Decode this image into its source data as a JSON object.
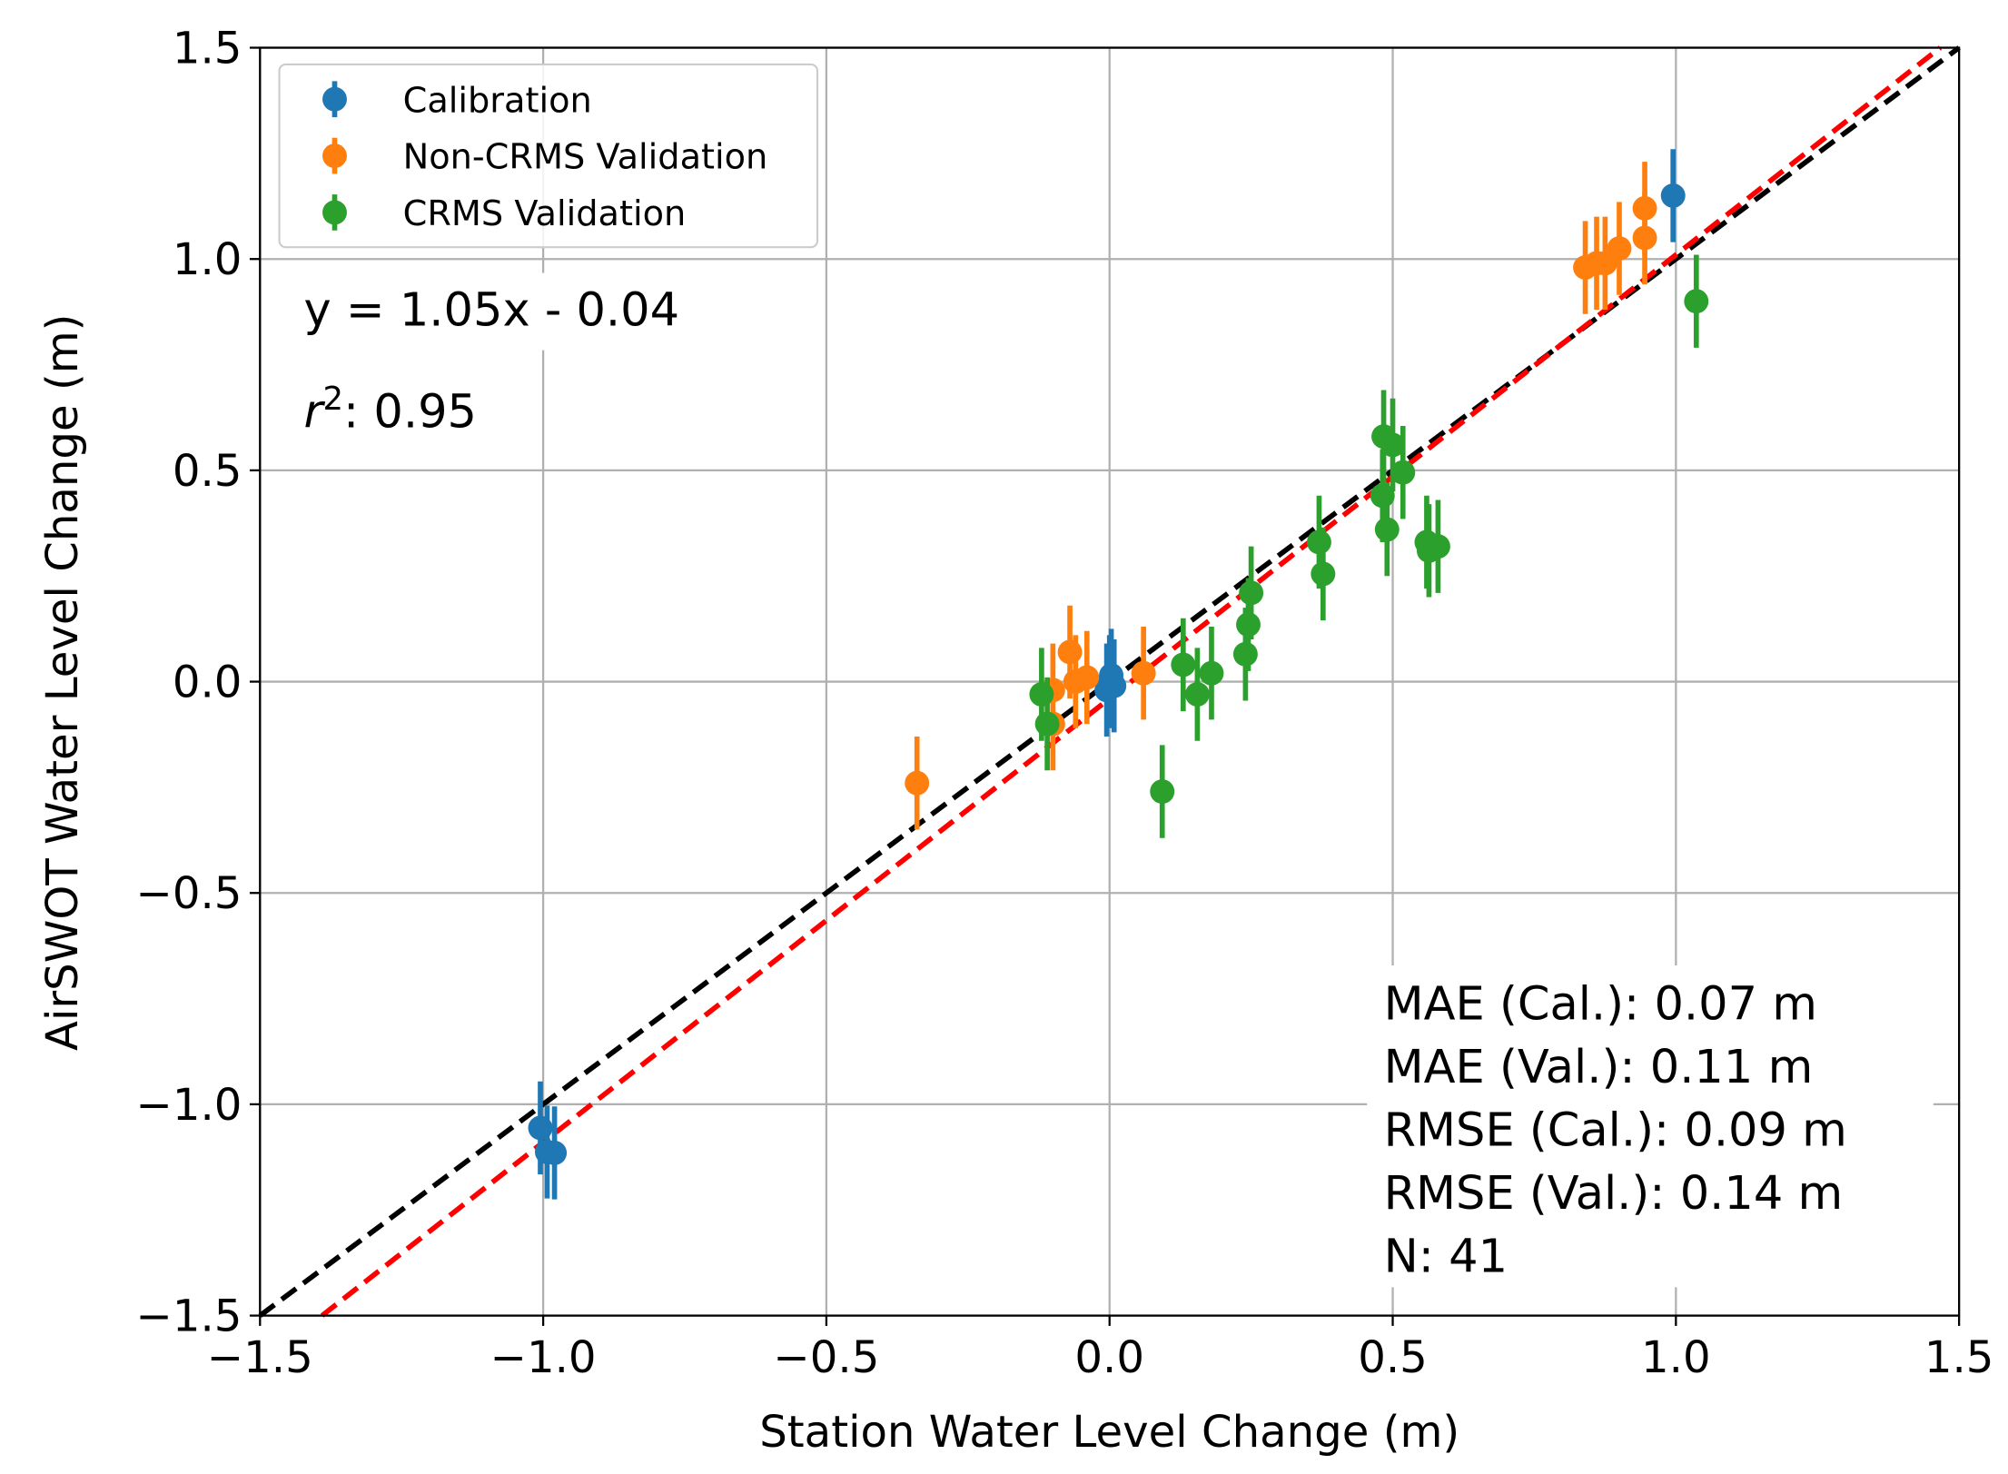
{
  "chart_data": {
    "type": "scatter",
    "xlabel": "Station Water Level Change (m)",
    "ylabel": "AirSWOT Water Level Change (m)",
    "xlim": [
      -1.5,
      1.5
    ],
    "ylim": [
      -1.5,
      1.5
    ],
    "xticks": [
      "−1.5",
      "−1.0",
      "−0.5",
      "0.0",
      "0.5",
      "1.0",
      "1.5"
    ],
    "yticks": [
      "−1.5",
      "−1.0",
      "−0.5",
      "0.0",
      "0.5",
      "1.0",
      "1.5"
    ],
    "tick_values": [
      -1.5,
      -1.0,
      -0.5,
      0.0,
      0.5,
      1.0,
      1.5
    ],
    "grid": true,
    "legend_position": "top-left",
    "error_bar": 0.11,
    "series": [
      {
        "name": "Calibration",
        "color": "#1f77b4",
        "x": [
          -1.005,
          -0.993,
          -0.98,
          0.995,
          -0.005,
          0.0,
          0.003,
          0.008
        ],
        "y": [
          -1.056,
          -1.113,
          -1.115,
          1.15,
          -0.02,
          0.0,
          0.015,
          -0.01
        ]
      },
      {
        "name": "Non-CRMS Validation",
        "color": "#ff7f0e",
        "x": [
          -0.34,
          -0.1,
          -0.1,
          -0.07,
          -0.06,
          -0.04,
          0.06,
          0.84,
          0.86,
          0.875,
          0.9,
          0.945,
          0.945
        ],
        "y": [
          -0.24,
          -0.1,
          -0.02,
          0.07,
          0.0,
          0.01,
          0.02,
          0.98,
          0.99,
          0.99,
          1.025,
          1.05,
          1.12
        ]
      },
      {
        "name": "CRMS Validation",
        "color": "#2ca02c",
        "x": [
          -0.12,
          -0.11,
          0.093,
          0.13,
          0.155,
          0.18,
          0.24,
          0.245,
          0.25,
          0.37,
          0.377,
          0.484,
          0.5,
          0.482,
          0.49,
          0.518,
          0.56,
          0.564,
          0.58,
          1.036
        ],
        "y": [
          -0.03,
          -0.1,
          -0.26,
          0.04,
          -0.03,
          0.02,
          0.065,
          0.135,
          0.21,
          0.33,
          0.255,
          0.58,
          0.56,
          0.44,
          0.36,
          0.495,
          0.33,
          0.31,
          0.32,
          0.9
        ]
      }
    ],
    "lines": [
      {
        "name": "1:1",
        "slope": 1.0,
        "intercept": 0.0,
        "color": "#000000"
      },
      {
        "name": "fit",
        "slope": 1.05,
        "intercept": -0.04,
        "color": "#ff0000"
      }
    ],
    "annotations": {
      "equation": "y = 1.05x - 0.04",
      "r2_label": "r",
      "r2_sup": "2",
      "r2_value": ": 0.95",
      "stats": [
        "MAE (Cal.): 0.07 m",
        "MAE (Val.): 0.11 m",
        "RMSE (Cal.): 0.09 m",
        "RMSE (Val.): 0.14 m",
        "N: 41"
      ]
    }
  }
}
